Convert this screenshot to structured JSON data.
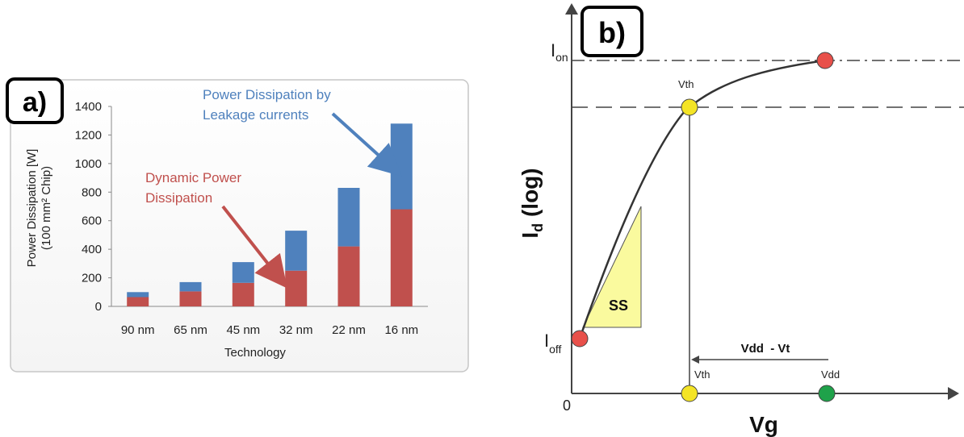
{
  "panel_a": {
    "panel_label": "a)",
    "chart_data": {
      "type": "bar",
      "stacked": true,
      "categories": [
        "90 nm",
        "65 nm",
        "45 nm",
        "32 nm",
        "22 nm",
        "16 nm"
      ],
      "series": [
        {
          "name": "Dynamic Power Dissipation",
          "color": "#c0504d",
          "values": [
            65,
            105,
            165,
            250,
            420,
            680
          ]
        },
        {
          "name": "Power Dissipation by Leakage currents",
          "color": "#4f81bd",
          "values": [
            35,
            65,
            145,
            280,
            410,
            600
          ]
        }
      ],
      "xlabel": "Technology",
      "ylabel_line1": "Power Dissipation [W]",
      "ylabel_line2": "(100 mm² Chip)",
      "ylim": [
        0,
        1400
      ],
      "yticks": [
        "0",
        "200",
        "400",
        "600",
        "800",
        "1000",
        "1200",
        "1400"
      ],
      "grid": false,
      "annotations": {
        "leakage_line1": "Power Dissipation by",
        "leakage_line2": "Leakage currents",
        "dynamic_line1": "Dynamic Power",
        "dynamic_line2": "Dissipation"
      }
    }
  },
  "panel_b": {
    "panel_label": "b)",
    "y_axis_label_main": "I",
    "y_axis_label_sub": "d",
    "y_axis_label_rest": " (log)",
    "x_axis_label": "Vg",
    "origin_label": "0",
    "ion_label_main": "I",
    "ion_label_sub": "on",
    "ioff_label_main": "I",
    "ioff_label_sub": "off",
    "vth_top_label": "Vth",
    "vth_bottom_label": "Vth",
    "vdd_label": "Vdd",
    "vdd_vt_label": "Vdd  - Vt",
    "ss_label": "SS",
    "colors": {
      "red_point": "#e8504a",
      "yellow_point": "#f4e426",
      "green_point": "#1fa24a",
      "triangle": "#fafa9e"
    }
  }
}
